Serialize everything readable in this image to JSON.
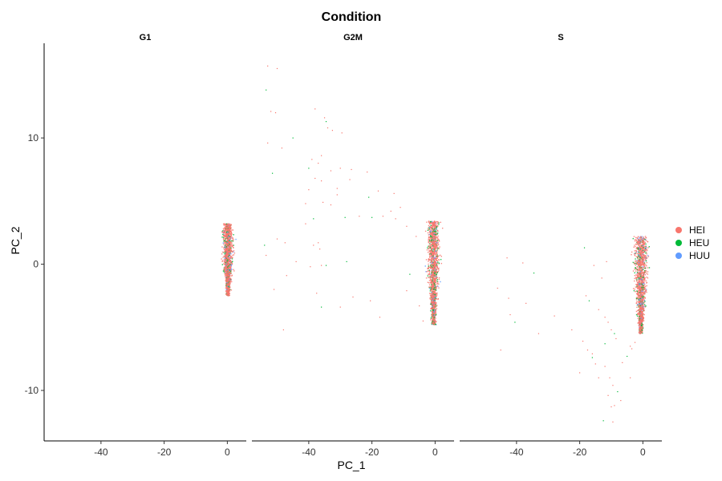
{
  "chart_data": {
    "type": "scatter",
    "title": "Condition",
    "xlabel": "PC_1",
    "ylabel": "PC_2",
    "xlim": [
      -58,
      6
    ],
    "ylim": [
      -14,
      17.5
    ],
    "x_ticks": [
      -40,
      -20,
      0
    ],
    "y_ticks": [
      -10,
      0,
      10
    ],
    "grid": false,
    "legend_position": "right",
    "panels": [
      "G1",
      "G2M",
      "S"
    ],
    "series": [
      {
        "name": "HEI",
        "color": "#F8766D"
      },
      {
        "name": "HEU",
        "color": "#00BA38"
      },
      {
        "name": "HUU",
        "color": "#619CFF"
      }
    ],
    "clusters": [
      {
        "panel": "G1",
        "x_center": 0.2,
        "x_spread": 1.2,
        "y_min": -2.5,
        "y_max": 3.2,
        "n": 1500
      },
      {
        "panel": "G2M",
        "x_center": -0.5,
        "x_spread": 1.6,
        "y_min": -4.8,
        "y_max": 3.4,
        "n": 1500
      },
      {
        "panel": "S",
        "x_center": -0.6,
        "x_spread": 1.8,
        "y_min": -5.5,
        "y_max": 2.2,
        "n": 1500
      }
    ],
    "outliers": {
      "G2M": [
        [
          -53,
          15.7
        ],
        [
          -50,
          15.5
        ],
        [
          -53.5,
          13.8
        ],
        [
          -52,
          12.1
        ],
        [
          -50.5,
          12
        ],
        [
          -38,
          12.3
        ],
        [
          -35,
          11.6
        ],
        [
          -34.5,
          11.3
        ],
        [
          -34,
          10.8
        ],
        [
          -32.5,
          10.6
        ],
        [
          -29.5,
          10.4
        ],
        [
          -48.5,
          9.2
        ],
        [
          -45,
          10
        ],
        [
          -53,
          9.6
        ],
        [
          -39,
          8.3
        ],
        [
          -37,
          8
        ],
        [
          -36,
          8.6
        ],
        [
          -40,
          7.6
        ],
        [
          -33,
          7.4
        ],
        [
          -30,
          7.6
        ],
        [
          -26.5,
          7.5
        ],
        [
          -21.5,
          7.3
        ],
        [
          -51.5,
          7.2
        ],
        [
          -38,
          6.8
        ],
        [
          -36,
          6.6
        ],
        [
          -27,
          6.7
        ],
        [
          -31,
          6
        ],
        [
          -21,
          5.3
        ],
        [
          -18,
          5.8
        ],
        [
          -13,
          5.6
        ],
        [
          -40,
          5.9
        ],
        [
          -41,
          4.8
        ],
        [
          -38.5,
          3.6
        ],
        [
          -35.5,
          4.9
        ],
        [
          -33,
          4.7
        ],
        [
          -31,
          5.5
        ],
        [
          -24,
          3.8
        ],
        [
          -20,
          3.7
        ],
        [
          -16.5,
          3.8
        ],
        [
          -14,
          4.2
        ],
        [
          -11,
          4.5
        ],
        [
          -41,
          3.2
        ],
        [
          -28.5,
          3.7
        ],
        [
          -12.5,
          3.6
        ],
        [
          -9,
          3
        ],
        [
          -6,
          2.2
        ],
        [
          -50,
          2
        ],
        [
          -54,
          1.5
        ],
        [
          -47.5,
          1.7
        ],
        [
          -38.5,
          1.5
        ],
        [
          -37,
          1.7
        ],
        [
          -36.5,
          1.2
        ],
        [
          -28,
          0.2
        ],
        [
          -53.5,
          0.7
        ],
        [
          -44,
          0.2
        ],
        [
          -39.5,
          -0.2
        ],
        [
          -36,
          -0.1
        ],
        [
          -34.5,
          -0.1
        ],
        [
          -47,
          -0.9
        ],
        [
          -37.5,
          -2.3
        ],
        [
          -51,
          -2
        ],
        [
          -48,
          -5.2
        ],
        [
          -36,
          -3.4
        ],
        [
          -30,
          -3.4
        ],
        [
          -26,
          -2.6
        ],
        [
          -20.5,
          -2.9
        ],
        [
          -17.5,
          -4.2
        ],
        [
          -8,
          -0.8
        ],
        [
          -9,
          -2.1
        ],
        [
          -5,
          -3.3
        ],
        [
          -3.8,
          -4.5
        ]
      ],
      "S": [
        [
          -43,
          0.5
        ],
        [
          -38,
          0.1
        ],
        [
          -34.5,
          -0.7
        ],
        [
          -46,
          -1.9
        ],
        [
          -42.5,
          -2.7
        ],
        [
          -37,
          -3.1
        ],
        [
          -42,
          -4
        ],
        [
          -40.5,
          -4.6
        ],
        [
          -33,
          -5.5
        ],
        [
          -45,
          -6.8
        ],
        [
          -28,
          -4.1
        ],
        [
          -22.5,
          -5.2
        ],
        [
          -18.5,
          1.3
        ],
        [
          -15.5,
          -0.1
        ],
        [
          -13,
          -1.1
        ],
        [
          -11.5,
          0.2
        ],
        [
          -18,
          -2.5
        ],
        [
          -17,
          -2.9
        ],
        [
          -14,
          -3.6
        ],
        [
          -12,
          -4.2
        ],
        [
          -11,
          -4.6
        ],
        [
          -10,
          -5.2
        ],
        [
          -9,
          -5.5
        ],
        [
          -8.5,
          -5.9
        ],
        [
          -19,
          -6.1
        ],
        [
          -17.5,
          -6.8
        ],
        [
          -20,
          -8.6
        ],
        [
          -16,
          -7.4
        ],
        [
          -15,
          -7.9
        ],
        [
          -12,
          -8.1
        ],
        [
          -10.5,
          -9
        ],
        [
          -9.5,
          -9.6
        ],
        [
          -8,
          -10.1
        ],
        [
          -11,
          -10.4
        ],
        [
          -7,
          -10.8
        ],
        [
          -9,
          -11.2
        ],
        [
          -10,
          -11.3
        ],
        [
          -12.5,
          -12.4
        ],
        [
          -9.5,
          -12.5
        ],
        [
          -4,
          -9
        ],
        [
          -4,
          -6.5
        ],
        [
          -6.5,
          -7.8
        ],
        [
          -5,
          -7.3
        ],
        [
          -3.5,
          -6.7
        ],
        [
          -2.5,
          -6.2
        ],
        [
          -16,
          -7.1
        ],
        [
          -14,
          -9
        ],
        [
          -12,
          -6.3
        ]
      ]
    }
  }
}
